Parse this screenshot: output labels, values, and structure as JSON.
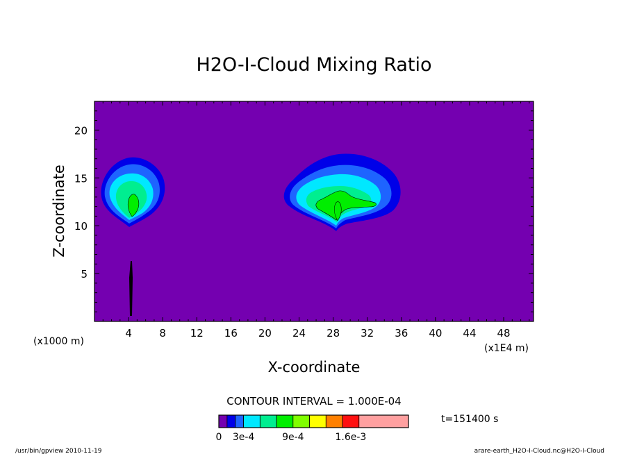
{
  "chart_data": {
    "type": "contour",
    "title": "H2O-I-Cloud Mixing Ratio",
    "xlabel": "X-coordinate",
    "ylabel": "Z-coordinate",
    "x_unit_left": "(x1000 m)",
    "x_unit_right": "(x1E4 m)",
    "xlim": [
      0,
      51.5
    ],
    "ylim": [
      0,
      23
    ],
    "x_ticks": [
      4,
      8,
      12,
      16,
      20,
      24,
      28,
      32,
      36,
      40,
      44,
      48
    ],
    "y_ticks": [
      5,
      10,
      15,
      20
    ],
    "contour_interval_text": "CONTOUR INTERVAL = 1.000E-04",
    "time_text": "t=151400 s",
    "colorbar_labels": [
      {
        "text": "0",
        "at": 0
      },
      {
        "text": "3e-4",
        "at": 3
      },
      {
        "text": "9e-4",
        "at": 9
      },
      {
        "text": "1.6e-3",
        "at": 16
      }
    ],
    "colorbar_bins": [
      {
        "from": 0,
        "to": 1,
        "color": "#7400b0"
      },
      {
        "from": 1,
        "to": 2,
        "color": "#0000e8"
      },
      {
        "from": 2,
        "to": 3,
        "color": "#1e64ff"
      },
      {
        "from": 3,
        "to": 5,
        "color": "#00e8ff"
      },
      {
        "from": 5,
        "to": 7,
        "color": "#00ee90"
      },
      {
        "from": 7,
        "to": 9,
        "color": "#00ee00"
      },
      {
        "from": 9,
        "to": 11,
        "color": "#80ff00"
      },
      {
        "from": 11,
        "to": 13,
        "color": "#ffff00"
      },
      {
        "from": 13,
        "to": 15,
        "color": "#ff8000"
      },
      {
        "from": 15,
        "to": 17,
        "color": "#ff1010"
      },
      {
        "from": 17,
        "to": 23,
        "color": "#ffa0a0"
      }
    ],
    "cloud_regions": [
      {
        "x": 4.5,
        "z": 13.3,
        "peak_level": "9e-4"
      },
      {
        "x": 28.5,
        "z": 12.5,
        "peak_level": "9e-4"
      }
    ],
    "background_color": "#7400b0"
  },
  "footer": {
    "left": "/usr/bin/gpview   2010-11-19",
    "right": "arare-earth_H2O-I-Cloud.nc@H2O-I-Cloud"
  }
}
